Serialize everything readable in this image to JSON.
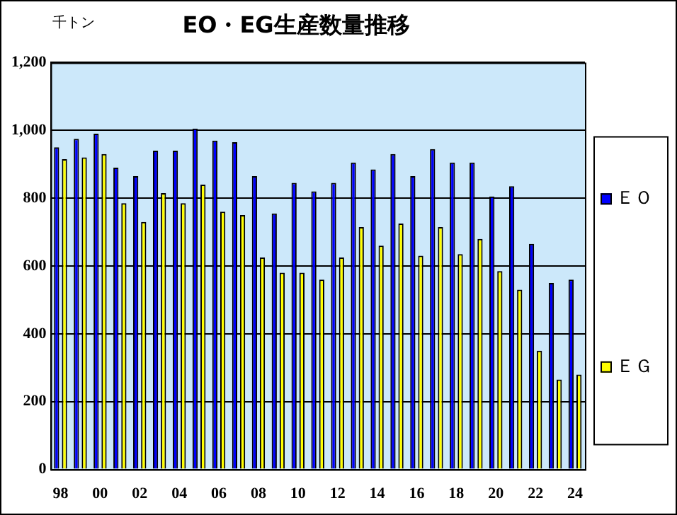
{
  "chart_data": {
    "type": "bar",
    "title": "EO・EG生産数量推移",
    "ylabel": "千トン",
    "categories": [
      "98",
      null,
      "00",
      null,
      "02",
      null,
      "04",
      null,
      "06",
      null,
      "08",
      null,
      "10",
      null,
      "12",
      null,
      "14",
      null,
      "16",
      null,
      "18",
      null,
      "20",
      null,
      "22",
      null,
      "24"
    ],
    "series": [
      {
        "name": "ＥＯ",
        "color": "#0000ff",
        "values": [
          950,
          975,
          990,
          890,
          865,
          940,
          940,
          1005,
          970,
          965,
          865,
          755,
          845,
          820,
          845,
          905,
          885,
          930,
          865,
          945,
          905,
          905,
          805,
          835,
          665,
          550,
          560
        ]
      },
      {
        "name": "ＥＧ",
        "color": "#ffff00",
        "values": [
          915,
          920,
          930,
          785,
          730,
          815,
          785,
          840,
          760,
          750,
          625,
          580,
          580,
          560,
          625,
          715,
          660,
          725,
          630,
          715,
          635,
          680,
          585,
          530,
          350,
          265,
          280
        ]
      }
    ],
    "ylim": [
      0,
      1200
    ],
    "yticks": [
      {
        "value": 0,
        "label": "0"
      },
      {
        "value": 200,
        "label": "200"
      },
      {
        "value": 400,
        "label": "400"
      },
      {
        "value": 600,
        "label": "600"
      },
      {
        "value": 800,
        "label": "800"
      },
      {
        "value": 1000,
        "label": "1,000"
      },
      {
        "value": 1200,
        "label": "1,200"
      }
    ],
    "grid": "y",
    "legend": "right"
  }
}
